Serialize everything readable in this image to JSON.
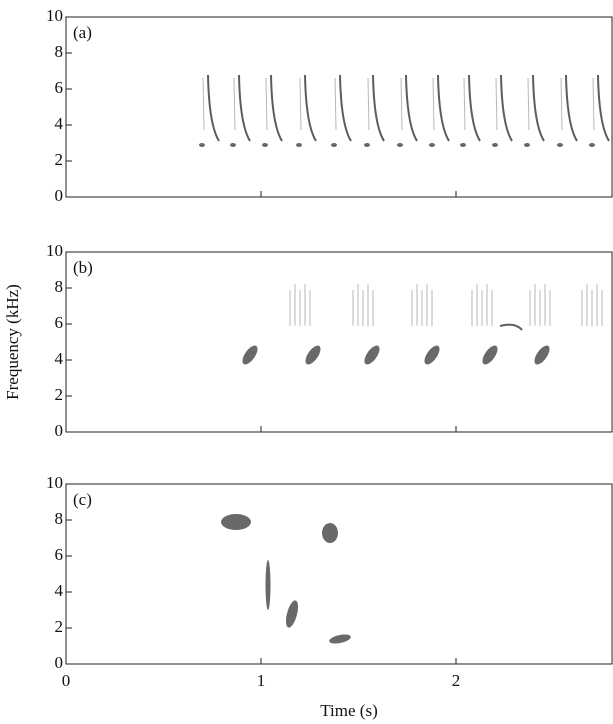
{
  "chart_data": [
    {
      "type": "spectrogram",
      "label": "(a)",
      "xlim": [
        0,
        2.8
      ],
      "ylim": [
        0,
        10
      ],
      "xticks": [
        0,
        1,
        2
      ],
      "yticks": [
        0,
        2,
        4,
        6,
        8,
        10
      ]
    },
    {
      "type": "spectrogram",
      "label": "(b)",
      "xlim": [
        0,
        2.8
      ],
      "ylim": [
        0,
        10
      ],
      "xticks": [
        0,
        1,
        2
      ],
      "yticks": [
        0,
        2,
        4,
        6,
        8,
        10
      ],
      "ylabel": "Frequency (kHz)"
    },
    {
      "type": "spectrogram",
      "label": "(c)",
      "xlim": [
        0,
        2.8
      ],
      "ylim": [
        0,
        10
      ],
      "xticks": [
        0,
        1,
        2
      ],
      "yticks": [
        0,
        2,
        4,
        6,
        8,
        10
      ],
      "xlabel": "Time (s)",
      "xtick_labels": true
    }
  ]
}
